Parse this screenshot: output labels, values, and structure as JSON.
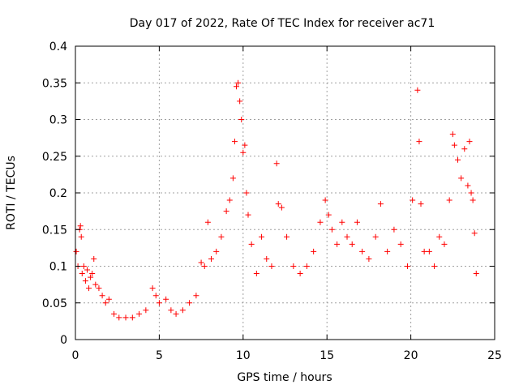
{
  "chart_data": {
    "type": "scatter",
    "title": "Day 017 of 2022, Rate Of TEC Index for receiver ac71",
    "xlabel": "GPS time / hours",
    "ylabel": "ROTI / TECUs",
    "xlim": [
      0,
      25
    ],
    "ylim": [
      0,
      0.4
    ],
    "x_ticks": [
      "0",
      "5",
      "10",
      "15",
      "20",
      "25"
    ],
    "y_ticks": [
      "0",
      "0.05",
      "0.1",
      "0.15",
      "0.2",
      "0.25",
      "0.3",
      "0.35",
      "0.4"
    ],
    "grid": true,
    "marker": "+",
    "series": [
      {
        "color": "#ff0000",
        "x": [
          0.05,
          0.15,
          0.25,
          0.3,
          0.35,
          0.4,
          0.5,
          0.6,
          0.7,
          0.8,
          0.9,
          1.0,
          1.1,
          1.2,
          1.4,
          1.6,
          1.8,
          2.0,
          2.3,
          2.6,
          3.0,
          3.4,
          3.8,
          4.2,
          4.6,
          4.8,
          5.0,
          5.4,
          5.7,
          6.0,
          6.4,
          6.8,
          7.2,
          7.5,
          7.7,
          7.9,
          8.1,
          8.4,
          8.7,
          9.0,
          9.2,
          9.4,
          9.5,
          9.6,
          9.7,
          9.8,
          9.9,
          10.0,
          10.1,
          10.2,
          10.3,
          10.5,
          10.8,
          11.1,
          11.4,
          11.7,
          12.0,
          12.1,
          12.3,
          12.6,
          13.0,
          13.4,
          13.8,
          14.2,
          14.6,
          14.9,
          15.1,
          15.3,
          15.6,
          15.9,
          16.2,
          16.5,
          16.8,
          17.1,
          17.5,
          17.9,
          18.2,
          18.6,
          19.0,
          19.4,
          19.8,
          20.1,
          20.4,
          20.5,
          20.6,
          20.8,
          21.1,
          21.4,
          21.7,
          22.0,
          22.3,
          22.5,
          22.6,
          22.8,
          23.0,
          23.2,
          23.4,
          23.5,
          23.6,
          23.7,
          23.8,
          23.9
        ],
        "y": [
          0.12,
          0.1,
          0.15,
          0.155,
          0.14,
          0.09,
          0.1,
          0.08,
          0.095,
          0.07,
          0.085,
          0.09,
          0.11,
          0.075,
          0.07,
          0.06,
          0.05,
          0.055,
          0.035,
          0.03,
          0.03,
          0.03,
          0.035,
          0.04,
          0.07,
          0.06,
          0.05,
          0.055,
          0.04,
          0.035,
          0.04,
          0.05,
          0.06,
          0.105,
          0.1,
          0.16,
          0.11,
          0.12,
          0.14,
          0.175,
          0.19,
          0.22,
          0.27,
          0.345,
          0.35,
          0.325,
          0.3,
          0.255,
          0.265,
          0.2,
          0.17,
          0.13,
          0.09,
          0.14,
          0.11,
          0.1,
          0.24,
          0.185,
          0.18,
          0.14,
          0.1,
          0.09,
          0.1,
          0.12,
          0.16,
          0.19,
          0.17,
          0.15,
          0.13,
          0.16,
          0.14,
          0.13,
          0.16,
          0.12,
          0.11,
          0.14,
          0.185,
          0.12,
          0.15,
          0.13,
          0.1,
          0.19,
          0.34,
          0.27,
          0.185,
          0.12,
          0.12,
          0.1,
          0.14,
          0.13,
          0.19,
          0.28,
          0.265,
          0.245,
          0.22,
          0.26,
          0.21,
          0.27,
          0.2,
          0.19,
          0.145,
          0.09
        ]
      }
    ]
  }
}
